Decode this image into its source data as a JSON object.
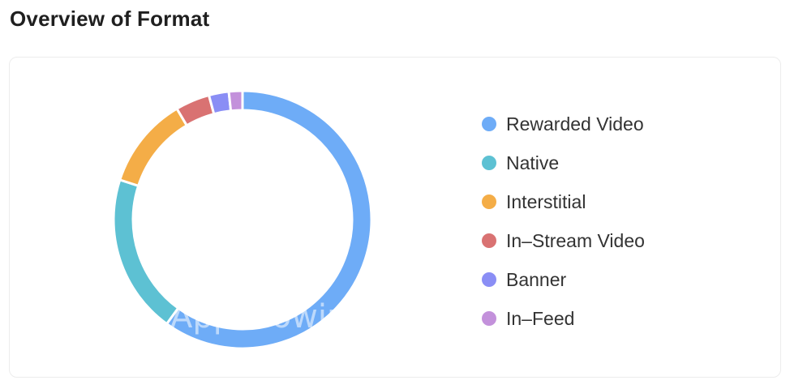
{
  "page": {
    "title": "Overview of Format"
  },
  "watermark": "AppGrowing",
  "chart_data": {
    "type": "pie",
    "donut": true,
    "categories": [
      "Rewarded Video",
      "Native",
      "Interstitial",
      "In–Stream Video",
      "Banner",
      "In–Feed"
    ],
    "values": [
      60.0,
      20.0,
      11.5,
      4.3,
      2.5,
      1.7
    ],
    "unit": "%",
    "colors": [
      "#6eacf7",
      "#5dc1d3",
      "#f4ad47",
      "#d97272",
      "#8a8ef5",
      "#c391db"
    ],
    "legend": "right"
  }
}
